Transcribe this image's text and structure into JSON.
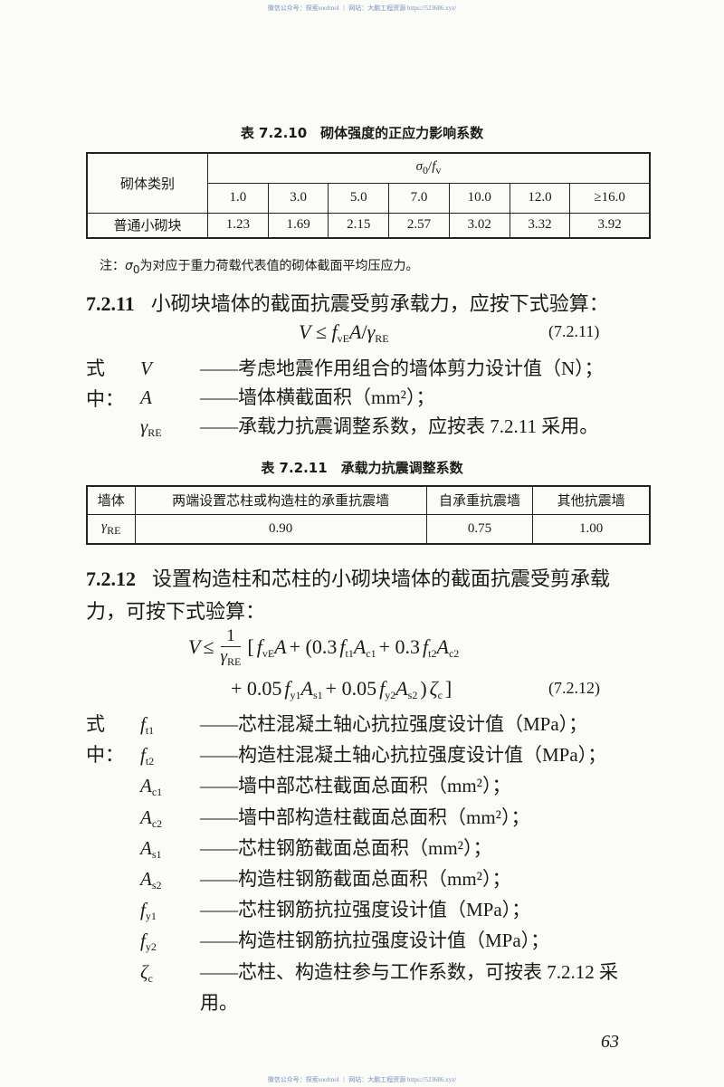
{
  "watermark_top": "微信公众号：探索soofmol ｜ 网站：大鹏工程资源 https://523686.xyz/",
  "watermark_bottom": "微信公众号：探索soofmol ｜ 网站：大鹏工程资源 https://523686.xyz/",
  "table_7_2_10": {
    "title": "表 7.2.10　砌体强度的正应力影响系数",
    "row_header": "砌体类别",
    "group_header": [
      "σ",
      "0",
      "/",
      "f",
      "v"
    ],
    "columns": [
      "1.0",
      "3.0",
      "5.0",
      "7.0",
      "10.0",
      "12.0",
      "≥16.0"
    ],
    "rows": [
      {
        "label": "普通小砌块",
        "values": [
          "1.23",
          "1.69",
          "2.15",
          "2.57",
          "3.02",
          "3.32",
          "3.92"
        ]
      }
    ],
    "note": [
      "注：",
      "σ",
      "0",
      "为对应于重力荷载代表值的砌体截面平均压应力。"
    ]
  },
  "section_7_2_11": {
    "number": "7.2.11",
    "text": "小砌块墙体的截面抗震受剪承载力，应按下式验算：",
    "formula": [
      "V",
      "≤",
      "f",
      "vE",
      "A",
      "/",
      "γ",
      "RE"
    ],
    "formula_number": "(7.2.11)",
    "where": [
      [
        "式中：",
        "V",
        "",
        "——考虑地震作用组合的墙体剪力设计值（N）；"
      ],
      [
        "",
        "A",
        "",
        "——墙体横截面积（mm²）；"
      ],
      [
        "",
        "γ",
        "RE",
        "——承载力抗震调整系数，应按表 7.2.11 采用。"
      ]
    ]
  },
  "table_7_2_11": {
    "title": "表 7.2.11　承载力抗震调整系数",
    "headers": [
      "墙体",
      "两端设置芯柱或构造柱的承重抗震墙",
      "自承重抗震墙",
      "其他抗震墙"
    ],
    "row_label": [
      "γ",
      "RE"
    ],
    "values": [
      "0.90",
      "0.75",
      "1.00"
    ]
  },
  "section_7_2_12": {
    "number": "7.2.12",
    "text": "设置构造柱和芯柱的小砌块墙体的截面抗震受剪承载力，可按下式验算：",
    "formula_line1": [
      "V",
      "≤",
      "1",
      "γ",
      "RE",
      "[",
      "f",
      "vE",
      "A",
      "+ (0.3",
      "f",
      "t1",
      "A",
      "c1",
      "+ 0.3",
      "f",
      "t2",
      "A",
      "c2"
    ],
    "formula_line2": [
      "+ 0.05",
      "f",
      "y1",
      "A",
      "s1",
      "+ 0.05",
      "f",
      "y2",
      "A",
      "s2",
      ")",
      "ζ",
      "c",
      "]"
    ],
    "formula_number": "(7.2.12)",
    "where": [
      [
        "式中：",
        "f",
        "t1",
        "——芯柱混凝土轴心抗拉强度设计值（MPa）；"
      ],
      [
        "",
        "f",
        "t2",
        "——构造柱混凝土轴心抗拉强度设计值（MPa）；"
      ],
      [
        "",
        "A",
        "c1",
        "——墙中部芯柱截面总面积（mm²）；"
      ],
      [
        "",
        "A",
        "c2",
        "——墙中部构造柱截面总面积（mm²）；"
      ],
      [
        "",
        "A",
        "s1",
        "——芯柱钢筋截面总面积（mm²）；"
      ],
      [
        "",
        "A",
        "s2",
        "——构造柱钢筋截面总面积（mm²）；"
      ],
      [
        "",
        "f",
        "y1",
        "——芯柱钢筋抗拉强度设计值（MPa）；"
      ],
      [
        "",
        "f",
        "y2",
        "——构造柱钢筋抗拉强度设计值（MPa）；"
      ],
      [
        "",
        "ζ",
        "c",
        "——芯柱、构造柱参与工作系数，可按表 7.2.12 采用。"
      ]
    ]
  },
  "page_number": "63"
}
